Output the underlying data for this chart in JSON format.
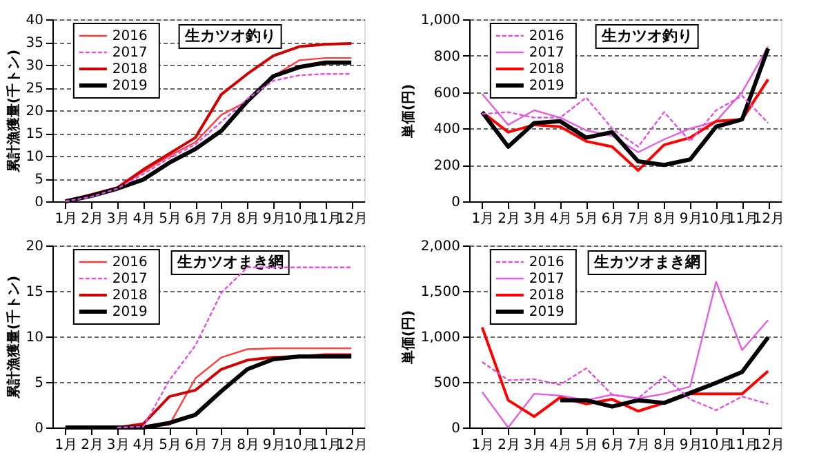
{
  "chart_data": [
    {
      "type": "line",
      "title": "生カツオ釣り",
      "ylabel": "累計漁獲量(千トン)",
      "categories": [
        "1月",
        "2月",
        "3月",
        "4月",
        "5月",
        "6月",
        "7月",
        "8月",
        "9月",
        "10月",
        "11月",
        "12月"
      ],
      "ylim": [
        0,
        40
      ],
      "yticks": [
        0,
        5,
        10,
        15,
        20,
        25,
        30,
        35,
        40
      ],
      "grid": "y",
      "legend": "top left",
      "marker": "none",
      "series": [
        {
          "name": "2016",
          "color": "#ff3c3c",
          "line_style": "solid",
          "values": [
            0,
            1.5,
            3,
            6.5,
            10,
            13,
            19,
            22,
            27.5,
            31,
            31.5,
            31.5
          ]
        },
        {
          "name": "2017",
          "color": "#e050e0",
          "line_style": "dashed",
          "values": [
            0,
            1,
            2.8,
            6,
            9.5,
            12.5,
            17.5,
            22.5,
            26.5,
            27.7,
            28,
            28
          ]
        },
        {
          "name": "2018",
          "color": "#cc0000",
          "line_style": "solid",
          "values": [
            0,
            1.5,
            3,
            7,
            10.5,
            14,
            23.5,
            28,
            32,
            34,
            34.5,
            34.7
          ]
        },
        {
          "name": "2019",
          "color": "#000000",
          "line_style": "solid",
          "values": [
            0,
            1.2,
            2.8,
            4.8,
            8.5,
            11.5,
            15.5,
            22,
            27.5,
            29.5,
            30.5,
            30.5
          ]
        }
      ]
    },
    {
      "type": "line",
      "title": "生カツオ釣り",
      "ylabel": "単価(円)",
      "categories": [
        "1月",
        "2月",
        "3月",
        "4月",
        "5月",
        "6月",
        "7月",
        "8月",
        "9月",
        "10月",
        "11月",
        "12月"
      ],
      "ylim": [
        0,
        1000
      ],
      "yticks": [
        0,
        200,
        400,
        600,
        800,
        {
          "value": 1000,
          "label": "1,000"
        }
      ],
      "grid": "y",
      "legend": "top left",
      "marker": "none",
      "series": [
        {
          "name": "2016",
          "color": "#e050e0",
          "line_style": "dashed",
          "values": [
            480,
            490,
            460,
            460,
            570,
            400,
            300,
            490,
            330,
            500,
            580,
            430
          ]
        },
        {
          "name": "2017",
          "color": "#e060e0",
          "line_style": "solid",
          "values": [
            590,
            420,
            500,
            460,
            390,
            360,
            270,
            340,
            400,
            440,
            600,
            850
          ]
        },
        {
          "name": "2018",
          "color": "#ff0000",
          "line_style": "solid",
          "values": [
            490,
            380,
            420,
            410,
            330,
            300,
            170,
            310,
            350,
            440,
            450,
            670
          ]
        },
        {
          "name": "2019",
          "color": "#000000",
          "line_style": "solid",
          "values": [
            490,
            300,
            430,
            440,
            350,
            380,
            220,
            200,
            230,
            410,
            450,
            840
          ]
        }
      ]
    },
    {
      "type": "line",
      "title": "生カツオまき網",
      "ylabel": "累計漁獲量(千トン)",
      "categories": [
        "1月",
        "2月",
        "3月",
        "4月",
        "5月",
        "6月",
        "7月",
        "8月",
        "9月",
        "10月",
        "11月",
        "12月"
      ],
      "ylim": [
        0,
        20
      ],
      "yticks": [
        0,
        5,
        10,
        15,
        20
      ],
      "grid": "y",
      "legend": "top left",
      "marker": "none",
      "series": [
        {
          "name": "2016",
          "color": "#ff3c3c",
          "line_style": "solid",
          "values": [
            0,
            0,
            0,
            0,
            0.3,
            5.4,
            7.7,
            8.6,
            8.7,
            8.7,
            8.7,
            8.7
          ]
        },
        {
          "name": "2017",
          "color": "#e050e0",
          "line_style": "dashed",
          "values": [
            null,
            null,
            0,
            0.1,
            5.2,
            9,
            14.8,
            17.6,
            17.6,
            17.6,
            17.6,
            17.6
          ]
        },
        {
          "name": "2018",
          "color": "#cc0000",
          "line_style": "solid",
          "values": [
            0,
            0,
            0,
            0.4,
            3.4,
            4.1,
            6.4,
            7.4,
            7.7,
            7.8,
            8,
            8
          ]
        },
        {
          "name": "2019",
          "color": "#000000",
          "line_style": "solid",
          "values": [
            0,
            0,
            0,
            0,
            0.5,
            1.4,
            4,
            6.4,
            7.5,
            7.8,
            7.8,
            7.8
          ]
        }
      ]
    },
    {
      "type": "line",
      "title": "生カツオまき網",
      "ylabel": "単価(円)",
      "categories": [
        "1月",
        "2月",
        "3月",
        "4月",
        "5月",
        "6月",
        "7月",
        "8月",
        "9月",
        "10月",
        "11月",
        "12月"
      ],
      "ylim": [
        0,
        2000
      ],
      "yticks": [
        0,
        500,
        {
          "value": 1000,
          "label": "1,000"
        },
        {
          "value": 1500,
          "label": "1,500"
        },
        {
          "value": 2000,
          "label": "2,000"
        }
      ],
      "grid": "y",
      "legend": "top left",
      "marker": "none",
      "series": [
        {
          "name": "2016",
          "color": "#e050e0",
          "line_style": "dashed",
          "values": [
            720,
            520,
            530,
            470,
            650,
            360,
            320,
            560,
            310,
            190,
            340,
            260
          ]
        },
        {
          "name": "2017",
          "color": "#e060e0",
          "line_style": "solid",
          "values": [
            390,
            0,
            370,
            350,
            300,
            360,
            320,
            370,
            450,
            1600,
            850,
            1180
          ]
        },
        {
          "name": "2018",
          "color": "#ff0000",
          "line_style": "solid",
          "values": [
            1100,
            300,
            120,
            330,
            260,
            310,
            180,
            270,
            370,
            370,
            370,
            620
          ]
        },
        {
          "name": "2019",
          "color": "#000000",
          "line_style": "solid",
          "values": [
            null,
            null,
            null,
            300,
            300,
            230,
            300,
            270,
            380,
            490,
            610,
            990
          ]
        }
      ]
    }
  ]
}
